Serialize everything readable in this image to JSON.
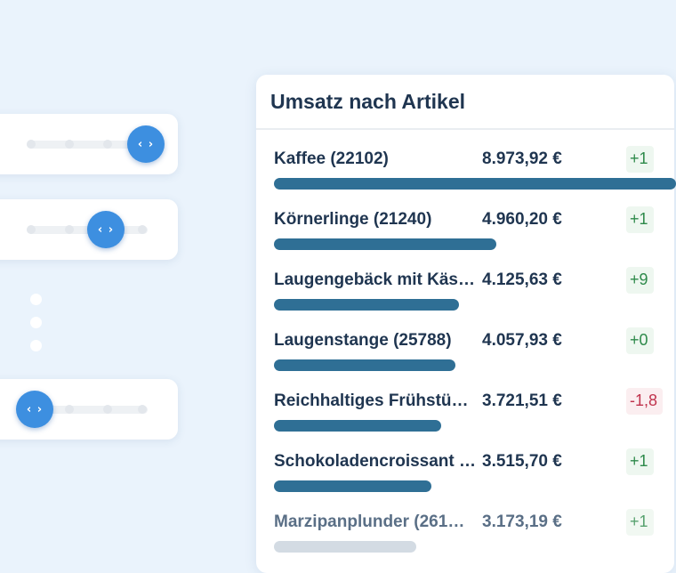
{
  "card": {
    "title": "Umsatz nach Artikel"
  },
  "colors": {
    "bar": "#2f6f95",
    "handle": "#3d8fe0",
    "positive": "#2e8a4b",
    "negative": "#c0334d"
  },
  "sliders": [
    {
      "position": 1.0
    },
    {
      "position": 0.67
    },
    {
      "position": 0.0
    }
  ],
  "rows": [
    {
      "name": "Kaffee (22102)",
      "value": "8.973,92 €",
      "change": "+1",
      "trend": "positive",
      "share": 1.0
    },
    {
      "name": "Körnerlinge (21240)",
      "value": "4.960,20 €",
      "change": "+1",
      "trend": "positive",
      "share": 0.553
    },
    {
      "name": "Laugengebäck mit Käs…",
      "value": "4.125,63 €",
      "change": "+9",
      "trend": "positive",
      "share": 0.46
    },
    {
      "name": "Laugenstange (25788)",
      "value": "4.057,93 €",
      "change": "+0",
      "trend": "positive",
      "share": 0.452
    },
    {
      "name": "Reichhaltiges Frühstü…",
      "value": "3.721,51 €",
      "change": "-1,8",
      "trend": "negative",
      "share": 0.415
    },
    {
      "name": "Schokoladencroissant …",
      "value": "3.515,70 €",
      "change": "+1",
      "trend": "positive",
      "share": 0.392
    },
    {
      "name": "Marzipanplunder (261…",
      "value": "3.173,19 €",
      "change": "+1",
      "trend": "positive",
      "share": 0.354
    }
  ]
}
